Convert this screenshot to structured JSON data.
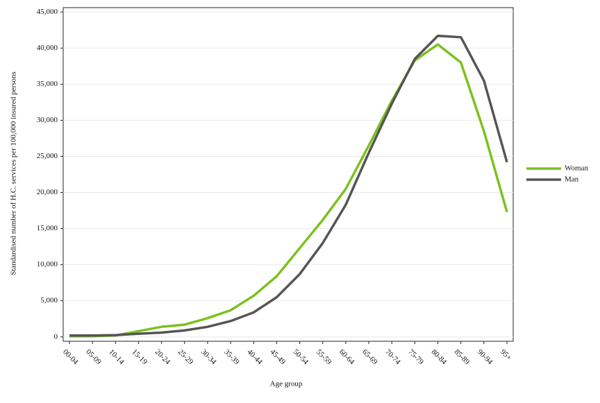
{
  "chart_data": {
    "type": "line",
    "xlabel": "Age group",
    "ylabel": "Standardised number of H.C. services per 100,000 insured persons",
    "categories": [
      "00-04",
      "05-09",
      "10-14",
      "15-19",
      "20-24",
      "25-29",
      "30-34",
      "35-39",
      "40-44",
      "45-49",
      "50-54",
      "55-59",
      "60-64",
      "65-69",
      "70-74",
      "75-79",
      "80-84",
      "85-89",
      "90-94",
      "95+"
    ],
    "series": [
      {
        "name": "Woman",
        "color": "#7bc11e",
        "values": [
          100,
          100,
          200,
          800,
          1400,
          1700,
          2600,
          3700,
          5700,
          8400,
          12300,
          16200,
          20500,
          26500,
          32700,
          38300,
          40500,
          38000,
          28500,
          17300
        ]
      },
      {
        "name": "Man",
        "color": "#555555",
        "values": [
          200,
          200,
          250,
          450,
          600,
          900,
          1400,
          2200,
          3400,
          5500,
          8700,
          13000,
          18300,
          25500,
          32300,
          38500,
          41700,
          41500,
          35500,
          24200
        ]
      }
    ],
    "ylim": [
      -600,
      45600
    ],
    "yticks": [
      0,
      {
        "value": 5000,
        "label": "5,000"
      },
      {
        "value": 10000,
        "label": "10,000"
      },
      {
        "value": 15000,
        "label": "15,000"
      },
      {
        "value": 20000,
        "label": "20,000"
      },
      {
        "value": 25000,
        "label": "25,000"
      },
      {
        "value": 30000,
        "label": "30,000"
      },
      {
        "value": 35000,
        "label": "35,000"
      },
      {
        "value": 40000,
        "label": "40,000"
      },
      {
        "value": 45000,
        "label": "45,000"
      }
    ],
    "grid": true,
    "legend": "right"
  }
}
